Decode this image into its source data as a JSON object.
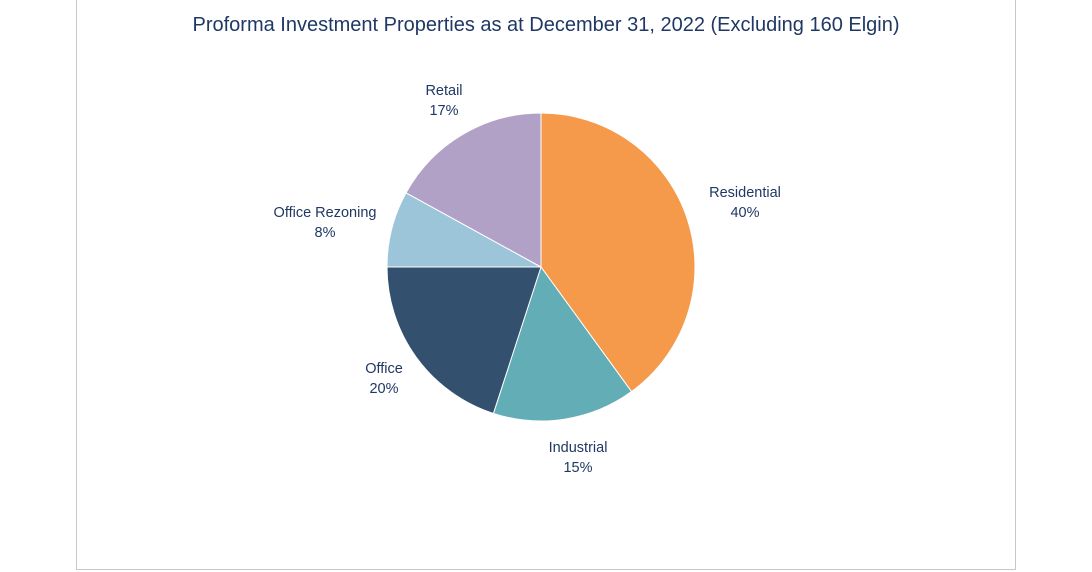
{
  "chart_data": {
    "type": "pie",
    "title": "Proforma Investment Properties as at December 31, 2022 (Excluding 160 Elgin)",
    "slices": [
      {
        "label": "Residential",
        "value": 40,
        "value_label": "40%",
        "color": "#f59a4a"
      },
      {
        "label": "Industrial",
        "value": 15,
        "value_label": "15%",
        "color": "#62adb6"
      },
      {
        "label": "Office",
        "value": 20,
        "value_label": "20%",
        "color": "#33506f"
      },
      {
        "label": "Office Rezoning",
        "value": 8,
        "value_label": "8%",
        "color": "#9dc5da"
      },
      {
        "label": "Retail",
        "value": 17,
        "value_label": "17%",
        "color": "#b2a1c6"
      }
    ],
    "start_angle_deg": 0,
    "direction": "clockwise",
    "legend": "none"
  }
}
